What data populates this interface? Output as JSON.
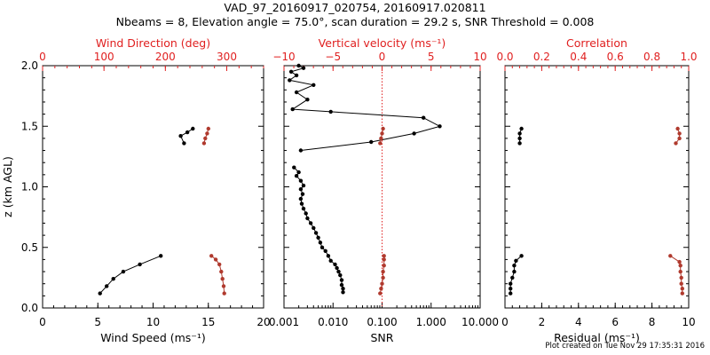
{
  "title_line1": "VAD_97_20160917_020754, 20160917.020811",
  "title_line2": "Nbeams = 8, Elevation angle = 75.0°, scan duration = 29.2 s, SNR Threshold = 0.008",
  "credit": "Plot created on Tue Nov 29 17:35:31 2016",
  "colors": {
    "primary": "#000000",
    "secondary": "#b03a2e",
    "axis_red": "#e02020"
  },
  "chart_data": [
    {
      "type": "scatter",
      "panel": "left",
      "ylabel": "z (km AGL)",
      "ylim": [
        0,
        2.0
      ],
      "yticks": [
        0.0,
        0.5,
        1.0,
        1.5,
        2.0
      ],
      "ytick_labels": [
        "0.0",
        "0.5",
        "1.0",
        "1.5",
        "2.0"
      ],
      "xlabel": "Wind Speed (ms⁻¹)",
      "xlim": [
        0,
        20
      ],
      "xticks": [
        0,
        5,
        10,
        15,
        20
      ],
      "xtick_labels": [
        "0",
        "5",
        "10",
        "15",
        "20"
      ],
      "top_xlabel": "Wind Direction (deg)",
      "top_xlim": [
        0,
        360
      ],
      "top_xticks": [
        0,
        100,
        200,
        300
      ],
      "top_xtick_labels": [
        "0",
        "100",
        "200",
        "300"
      ],
      "series": [
        {
          "axis": "bottom",
          "color": "#000000",
          "segments": [
            {
              "x": [
                5.2,
                5.8,
                6.4,
                7.3,
                8.8,
                10.7
              ],
              "y": [
                0.12,
                0.18,
                0.24,
                0.3,
                0.36,
                0.43
              ]
            },
            {
              "x": [
                12.8,
                12.5,
                13.1,
                13.6
              ],
              "y": [
                1.36,
                1.42,
                1.45,
                1.48
              ]
            }
          ]
        },
        {
          "axis": "top",
          "color": "#b03a2e",
          "segments": [
            {
              "x": [
                296,
                295,
                293,
                291,
                288,
                282,
                275
              ],
              "y": [
                0.12,
                0.18,
                0.24,
                0.3,
                0.36,
                0.4,
                0.43
              ]
            },
            {
              "x": [
                263,
                265,
                268,
                270
              ],
              "y": [
                1.36,
                1.4,
                1.44,
                1.48
              ]
            }
          ]
        }
      ]
    },
    {
      "type": "scatter",
      "panel": "middle",
      "xlabel": "SNR",
      "xscale": "log",
      "xlim": [
        0.001,
        10
      ],
      "xticks": [
        0.001,
        0.01,
        0.1,
        1,
        10
      ],
      "xtick_labels": [
        "0.001",
        "0.010",
        "0.100",
        "1.000",
        "10.000"
      ],
      "ylim": [
        0,
        2.0
      ],
      "top_xlabel": "Vertical velocity (ms⁻¹)",
      "top_xlim": [
        -10,
        10
      ],
      "top_xticks": [
        -10,
        -5,
        0,
        5,
        10
      ],
      "top_xtick_labels": [
        "−10",
        "−5",
        "0",
        "5",
        "10"
      ],
      "reference_line": {
        "axis": "top",
        "x": 0
      },
      "series": [
        {
          "axis": "bottom",
          "color": "#000000",
          "segments": [
            {
              "x": [
                0.016,
                0.016,
                0.015,
                0.015,
                0.014,
                0.013,
                0.012,
                0.011,
                0.009,
                0.008,
                0.007,
                0.006,
                0.0055,
                0.005,
                0.0045,
                0.004,
                0.0035,
                0.003,
                0.0028,
                0.0025,
                0.0023,
                0.0022,
                0.0024,
                0.0022,
                0.0025,
                0.0022,
                0.0018,
                0.002,
                0.0016
              ],
              "y": [
                0.13,
                0.16,
                0.19,
                0.23,
                0.27,
                0.3,
                0.33,
                0.36,
                0.39,
                0.43,
                0.47,
                0.5,
                0.54,
                0.58,
                0.62,
                0.66,
                0.7,
                0.74,
                0.78,
                0.82,
                0.86,
                0.9,
                0.94,
                0.98,
                1.01,
                1.05,
                1.09,
                1.12,
                1.16
              ]
            },
            {
              "x": [
                0.0022,
                0.06,
                0.45,
                1.5,
                0.7,
                0.009,
                0.0015,
                0.003,
                0.0018,
                0.004,
                0.0013,
                0.0018,
                0.0014,
                0.0025,
                0.002
              ],
              "y": [
                1.3,
                1.37,
                1.44,
                1.5,
                1.57,
                1.62,
                1.64,
                1.72,
                1.78,
                1.84,
                1.88,
                1.92,
                1.95,
                1.98,
                2.0
              ]
            }
          ]
        },
        {
          "axis": "top",
          "color": "#b03a2e",
          "segments": [
            {
              "x": [
                -0.2,
                -0.1,
                0,
                0.1,
                0.1,
                0.2,
                0.2,
                0.2
              ],
              "y": [
                0.12,
                0.16,
                0.2,
                0.25,
                0.3,
                0.35,
                0.4,
                0.43
              ]
            },
            {
              "x": [
                -0.2,
                -0.1,
                0,
                0.1
              ],
              "y": [
                1.36,
                1.4,
                1.44,
                1.48
              ]
            }
          ]
        }
      ]
    },
    {
      "type": "scatter",
      "panel": "right",
      "xlabel": "Residual (ms⁻¹)",
      "xlim": [
        0,
        10
      ],
      "xticks": [
        0,
        2,
        4,
        6,
        8,
        10
      ],
      "xtick_labels": [
        "0",
        "2",
        "4",
        "6",
        "8",
        "10"
      ],
      "ylim": [
        0,
        2.0
      ],
      "top_xlabel": "Correlation",
      "top_xlim": [
        0,
        1.0
      ],
      "top_xticks": [
        0,
        0.2,
        0.4,
        0.6,
        0.8,
        1.0
      ],
      "top_xtick_labels": [
        "0.0",
        "0.2",
        "0.4",
        "0.6",
        "0.8",
        "1.0"
      ],
      "series": [
        {
          "axis": "bottom",
          "color": "#000000",
          "segments": [
            {
              "x": [
                0.3,
                0.3,
                0.3,
                0.4,
                0.5,
                0.5,
                0.6,
                0.9
              ],
              "y": [
                0.12,
                0.16,
                0.2,
                0.25,
                0.3,
                0.35,
                0.39,
                0.43
              ]
            },
            {
              "x": [
                0.8,
                0.8,
                0.8,
                0.9
              ],
              "y": [
                1.36,
                1.4,
                1.44,
                1.48
              ]
            }
          ]
        },
        {
          "axis": "top",
          "color": "#b03a2e",
          "segments": [
            {
              "x": [
                0.965,
                0.965,
                0.96,
                0.96,
                0.955,
                0.955,
                0.95,
                0.9
              ],
              "y": [
                0.12,
                0.16,
                0.2,
                0.25,
                0.3,
                0.35,
                0.38,
                0.43
              ]
            },
            {
              "x": [
                0.93,
                0.95,
                0.95,
                0.94
              ],
              "y": [
                1.36,
                1.4,
                1.44,
                1.48
              ]
            }
          ]
        }
      ]
    }
  ]
}
